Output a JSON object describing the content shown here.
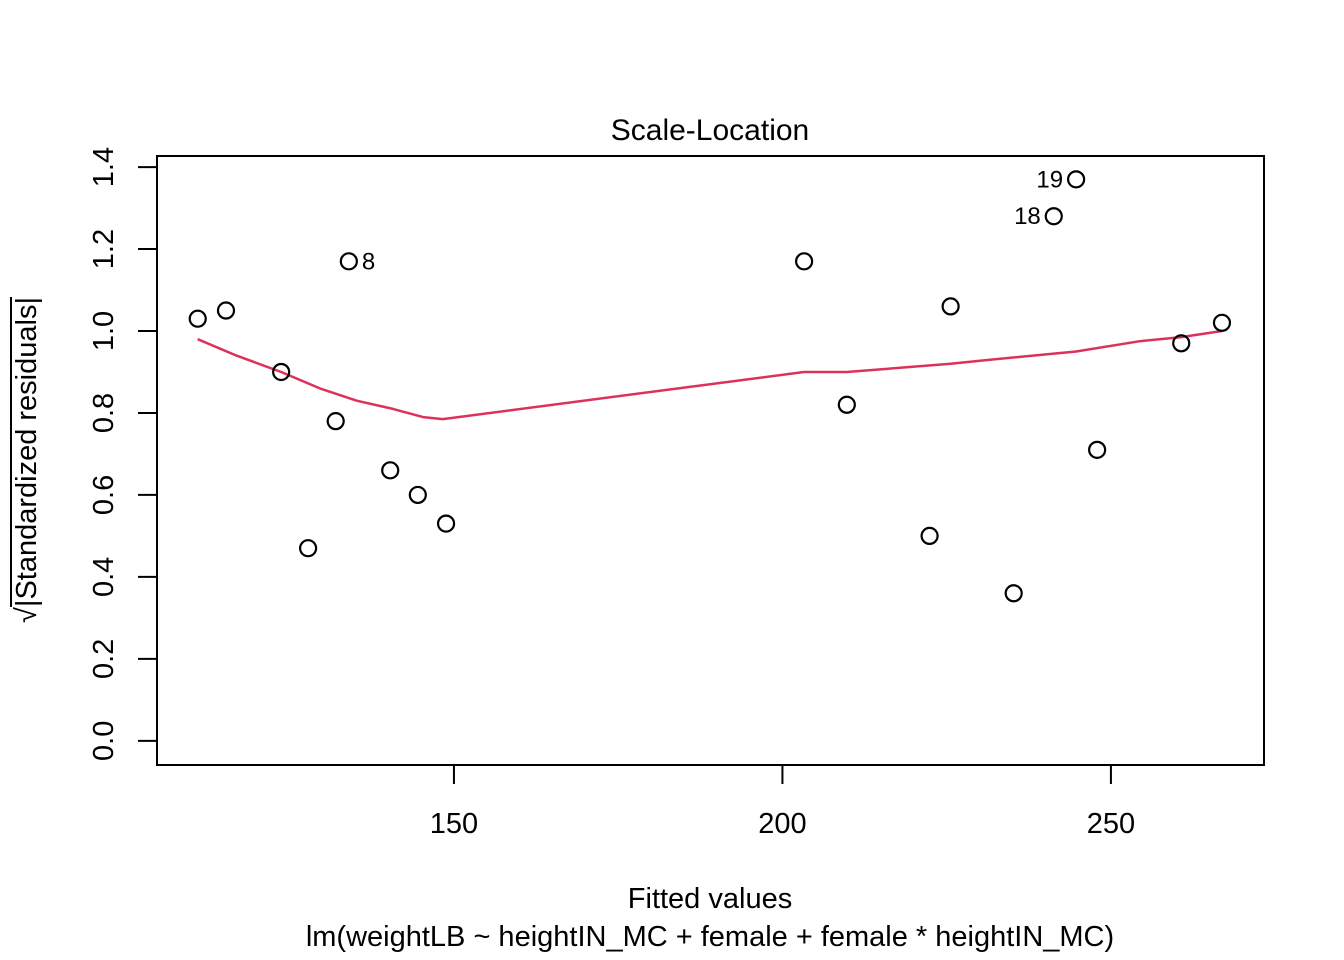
{
  "chart_data": {
    "type": "scatter",
    "title": "Scale-Location",
    "xlabel": "Fitted values",
    "sublabel": "lm(weightLB ~ heightIN_MC + female + female * heightIN_MC)",
    "ylabel_sqrt": "√",
    "ylabel_text": "|Standardized residuals|",
    "xlim": [
      104.8,
      273.3
    ],
    "ylim": [
      -0.059,
      1.427
    ],
    "x_tick_values": [
      150,
      200,
      250
    ],
    "x_tick_labels": [
      "150",
      "200",
      "250"
    ],
    "y_tick_values": [
      0.0,
      0.2,
      0.4,
      0.6,
      0.8,
      1.0,
      1.2,
      1.4
    ],
    "y_tick_labels": [
      "0.0",
      "0.2",
      "0.4",
      "0.6",
      "0.8",
      "1.0",
      "1.2",
      "1.4"
    ],
    "grid": false,
    "legend": null,
    "point_color": "#000000",
    "line_color": "#DC325A",
    "points": [
      {
        "x": 111.0,
        "y": 1.03
      },
      {
        "x": 115.3,
        "y": 1.05
      },
      {
        "x": 123.7,
        "y": 0.9
      },
      {
        "x": 127.8,
        "y": 0.47
      },
      {
        "x": 132.0,
        "y": 0.78
      },
      {
        "x": 134.0,
        "y": 1.17,
        "label": "8",
        "label_side": "right"
      },
      {
        "x": 140.3,
        "y": 0.66
      },
      {
        "x": 144.5,
        "y": 0.6
      },
      {
        "x": 148.8,
        "y": 0.53
      },
      {
        "x": 203.3,
        "y": 1.17
      },
      {
        "x": 209.8,
        "y": 0.82
      },
      {
        "x": 222.4,
        "y": 0.5
      },
      {
        "x": 225.6,
        "y": 1.06
      },
      {
        "x": 235.2,
        "y": 0.36
      },
      {
        "x": 241.3,
        "y": 1.28,
        "label": "18",
        "label_side": "left"
      },
      {
        "x": 244.7,
        "y": 1.37,
        "label": "19",
        "label_side": "left"
      },
      {
        "x": 247.9,
        "y": 0.71
      },
      {
        "x": 260.7,
        "y": 0.97
      },
      {
        "x": 266.9,
        "y": 1.02
      }
    ],
    "smooth_line": [
      [
        111.0,
        0.98
      ],
      [
        116.9,
        0.94
      ],
      [
        123.7,
        0.9
      ],
      [
        129.6,
        0.86
      ],
      [
        135.2,
        0.83
      ],
      [
        140.7,
        0.81
      ],
      [
        145.3,
        0.79
      ],
      [
        148.3,
        0.785
      ],
      [
        203.3,
        0.9
      ],
      [
        209.8,
        0.9
      ],
      [
        225.6,
        0.92
      ],
      [
        231.6,
        0.93
      ],
      [
        244.7,
        0.95
      ],
      [
        254.4,
        0.975
      ],
      [
        260.7,
        0.985
      ],
      [
        266.9,
        1.0
      ]
    ]
  }
}
